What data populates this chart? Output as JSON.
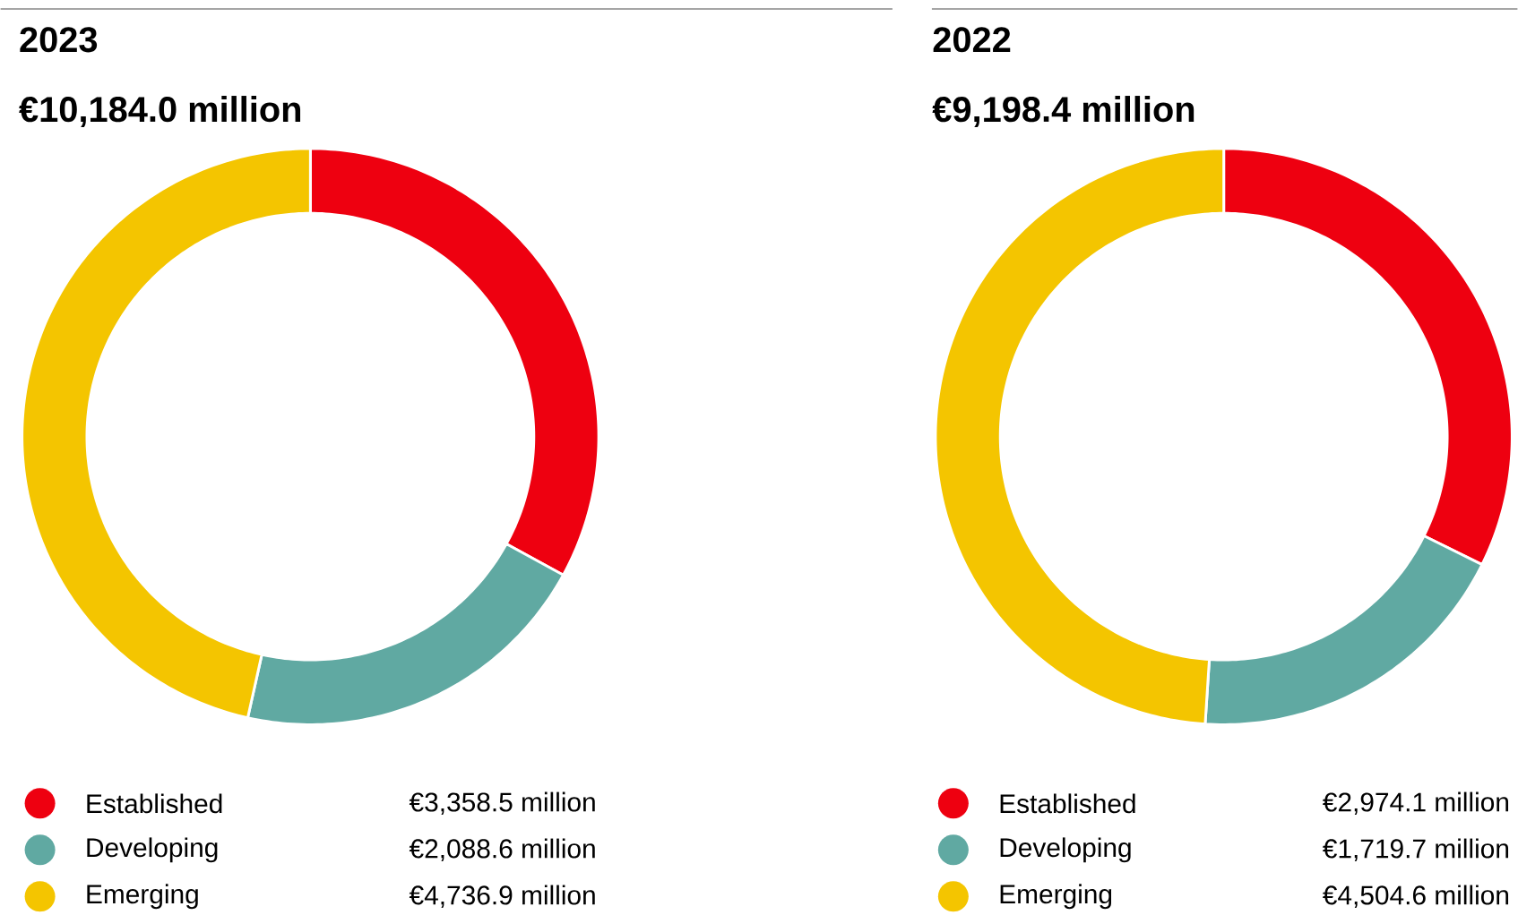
{
  "chart_data": [
    {
      "type": "donut",
      "title": "2023",
      "subtitle": "€10,184.0 million",
      "categories": [
        "Established",
        "Developing",
        "Emerging"
      ],
      "values": [
        3358.5,
        2088.6,
        4736.9
      ],
      "colors": [
        "#ee0010",
        "#60a9a2",
        "#f4c500"
      ],
      "value_labels": [
        "€3,358.5 million",
        "€2,088.6 million",
        "€4,736.9 million"
      ],
      "legend": "bottom"
    },
    {
      "type": "donut",
      "title": "2022",
      "subtitle": "€9,198.4 million",
      "categories": [
        "Established",
        "Developing",
        "Emerging"
      ],
      "values": [
        2974.1,
        1719.7,
        4504.6
      ],
      "colors": [
        "#ee0010",
        "#60a9a2",
        "#f4c500"
      ],
      "value_labels": [
        "€2,974.1 million",
        "€1,719.7 million",
        "€4,504.6 million"
      ],
      "legend": "bottom"
    }
  ]
}
